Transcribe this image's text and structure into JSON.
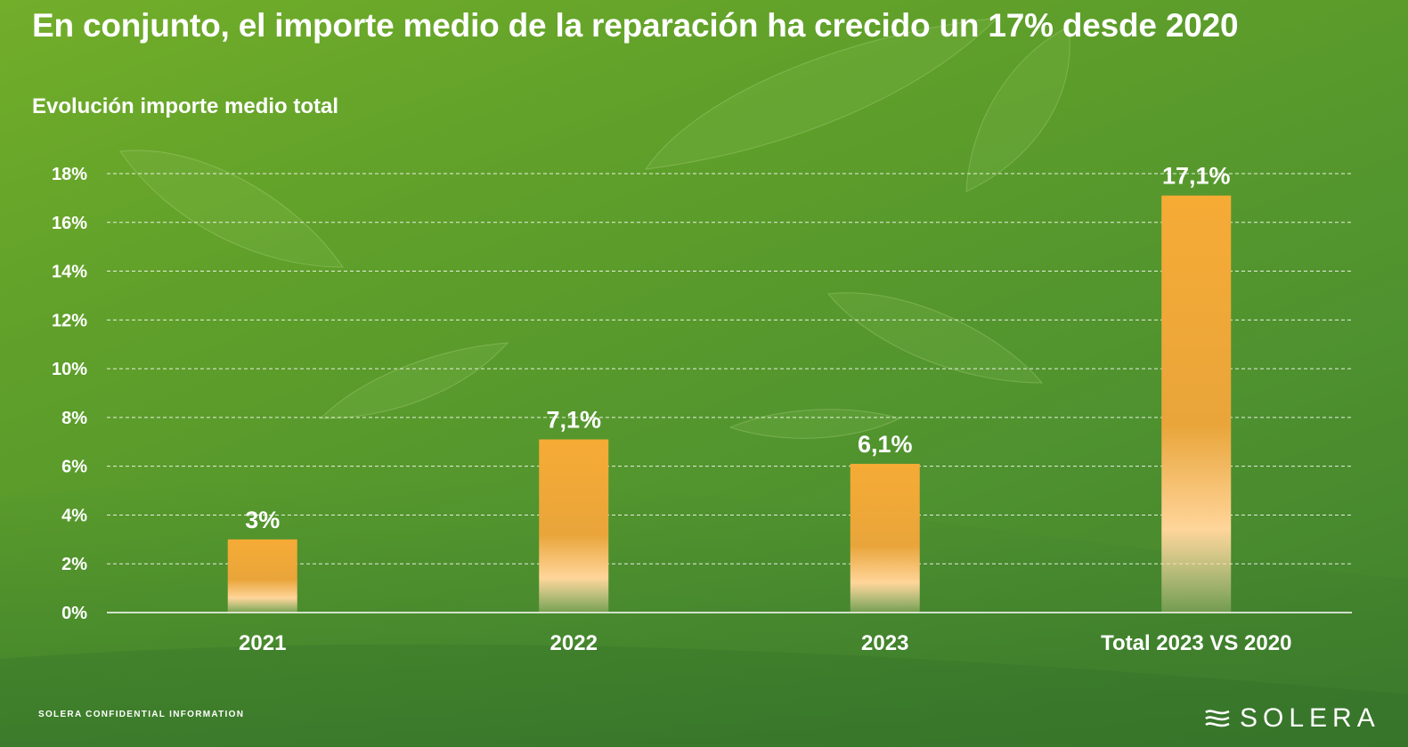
{
  "slide": {
    "title": "En conjunto, el importe medio de la reparación ha crecido un 17% desde 2020",
    "subtitle": "Evolución importe medio total",
    "footer": "SOLERA CONFIDENTIAL INFORMATION",
    "logo_text": "SOLERA",
    "logo_icon": "solera-wave-icon"
  },
  "chart_data": {
    "type": "bar",
    "title": "Evolución importe medio total",
    "categories": [
      "2021",
      "2022",
      "2023",
      "Total 2023 VS 2020"
    ],
    "values": [
      3.0,
      7.1,
      6.1,
      17.1
    ],
    "data_labels": [
      "3%",
      "7,1%",
      "6,1%",
      "17,1%"
    ],
    "ylim": [
      0,
      18
    ],
    "yticks": [
      0,
      2,
      4,
      6,
      8,
      10,
      12,
      14,
      16,
      18
    ],
    "ytick_labels": [
      "0%",
      "2%",
      "4%",
      "6%",
      "8%",
      "10%",
      "12%",
      "14%",
      "16%",
      "18%"
    ],
    "grid": true,
    "legend": "none",
    "colors": {
      "bar_top": "#f6ab35",
      "bar_mid": "#ffd59a",
      "grid": "#ffffff",
      "text": "#ffffff"
    }
  }
}
